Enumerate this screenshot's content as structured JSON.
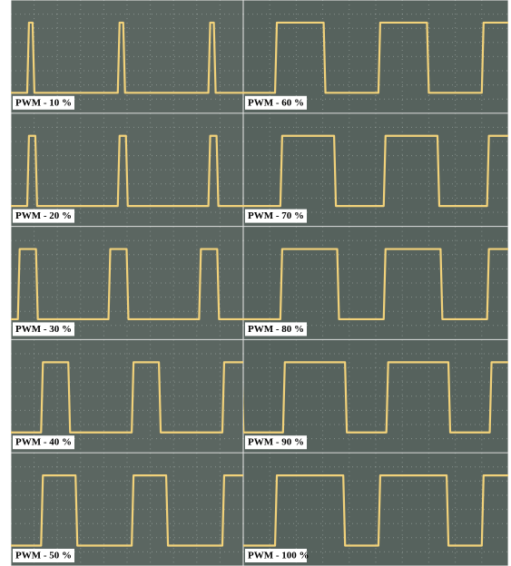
{
  "panels": [
    {
      "label": "PWM - 10 %"
    },
    {
      "label": "PWM - 20 %"
    },
    {
      "label": "PWM - 30 %"
    },
    {
      "label": "PWM - 40 %"
    },
    {
      "label": "PWM - 50 %"
    },
    {
      "label": "PWM - 60 %"
    },
    {
      "label": "PWM - 70 %"
    },
    {
      "label": "PWM - 80 %"
    },
    {
      "label": "PWM - 90 %"
    },
    {
      "label": "PWM - 100 %"
    }
  ]
}
